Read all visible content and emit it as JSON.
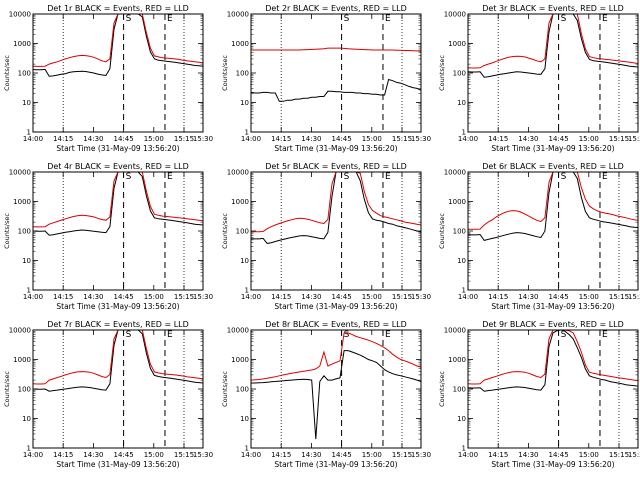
{
  "chart_data": [
    {
      "title": "Det 1r BLACK = Events, RED = LLD",
      "ylabel": "Counts/sec",
      "xlabel": "Start Time (31-May-09 13:56:20)",
      "series": [
        {
          "name": "BLACK = Events",
          "color": "#000000",
          "y": [
            130,
            128,
            128,
            132,
            78,
            80,
            85,
            90,
            95,
            105,
            110,
            112,
            115,
            112,
            106,
            100,
            92,
            86,
            82,
            140,
            3000,
            10000,
            10000,
            10000,
            10000,
            10000,
            10000,
            8000,
            1800,
            520,
            300,
            270,
            260,
            250,
            240,
            230,
            220,
            210,
            200,
            190,
            180,
            175,
            170
          ]
        },
        {
          "name": "RED = LLD",
          "color": "#e00000",
          "y": [
            170,
            168,
            168,
            170,
            200,
            220,
            240,
            270,
            300,
            330,
            360,
            380,
            395,
            390,
            370,
            340,
            300,
            260,
            240,
            300,
            5000,
            10000,
            10000,
            10000,
            10000,
            10000,
            10000,
            10000,
            2400,
            700,
            380,
            350,
            330,
            320,
            310,
            300,
            290,
            270,
            260,
            250,
            240,
            230,
            220
          ]
        }
      ]
    },
    {
      "title": "Det 2r BLACK = Events, RED = LLD",
      "ylabel": "Counts/sec",
      "xlabel": "Start Time (31-May-09 13:56:20)",
      "series": [
        {
          "name": "BLACK = Events",
          "color": "#000000",
          "y": [
            22,
            21,
            21,
            22,
            22,
            21,
            21,
            11,
            11,
            12,
            12,
            13,
            13,
            14,
            14,
            15,
            15,
            16,
            16,
            24,
            24,
            23,
            23,
            22,
            22,
            22,
            21,
            21,
            20,
            20,
            19,
            19,
            18,
            18,
            60,
            55,
            48,
            45,
            40,
            35,
            32,
            30,
            26
          ]
        },
        {
          "name": "RED = LLD",
          "color": "#e00000",
          "y": [
            600,
            600,
            600,
            600,
            600,
            600,
            600,
            600,
            600,
            600,
            600,
            600,
            600,
            610,
            620,
            630,
            640,
            650,
            660,
            700,
            700,
            700,
            700,
            680,
            660,
            650,
            640,
            630,
            620,
            610,
            600,
            600,
            600,
            600,
            600,
            600,
            590,
            590,
            580,
            580,
            570,
            560,
            550
          ]
        }
      ]
    },
    {
      "title": "Det 3r BLACK = Events, RED = LLD",
      "ylabel": "Counts/sec",
      "xlabel": "Start Time (31-May-09 13:56:20)",
      "series": [
        {
          "name": "BLACK = Events",
          "color": "#000000",
          "y": [
            110,
            108,
            108,
            110,
            72,
            75,
            80,
            85,
            90,
            95,
            100,
            105,
            110,
            108,
            104,
            100,
            96,
            92,
            90,
            140,
            2500,
            10000,
            10000,
            10000,
            10000,
            10000,
            10000,
            6000,
            1500,
            500,
            290,
            260,
            250,
            240,
            230,
            220,
            210,
            200,
            190,
            180,
            170,
            165,
            160
          ]
        },
        {
          "name": "RED = LLD",
          "color": "#e00000",
          "y": [
            150,
            148,
            148,
            150,
            180,
            200,
            220,
            250,
            280,
            310,
            340,
            360,
            370,
            365,
            350,
            320,
            290,
            260,
            240,
            300,
            5000,
            10000,
            10000,
            10000,
            10000,
            10000,
            10000,
            10000,
            2200,
            650,
            360,
            330,
            310,
            300,
            290,
            280,
            270,
            260,
            250,
            240,
            230,
            220,
            210
          ]
        }
      ]
    },
    {
      "title": "Det 4r BLACK = Events, RED = LLD",
      "ylabel": "Counts/sec",
      "xlabel": "Start Time (31-May-09 13:56:20)",
      "series": [
        {
          "name": "BLACK = Events",
          "color": "#000000",
          "y": [
            100,
            98,
            98,
            100,
            72,
            75,
            80,
            85,
            90,
            95,
            100,
            104,
            108,
            106,
            102,
            98,
            94,
            90,
            88,
            140,
            2800,
            10000,
            10000,
            10000,
            10000,
            10000,
            10000,
            7000,
            1600,
            480,
            280,
            260,
            250,
            240,
            230,
            220,
            210,
            200,
            190,
            180,
            170,
            165,
            160
          ]
        },
        {
          "name": "RED = LLD",
          "color": "#e00000",
          "y": [
            140,
            138,
            138,
            140,
            170,
            190,
            210,
            235,
            260,
            285,
            310,
            330,
            340,
            335,
            320,
            300,
            270,
            245,
            230,
            300,
            5000,
            10000,
            10000,
            10000,
            10000,
            10000,
            10000,
            10000,
            2300,
            680,
            370,
            340,
            320,
            310,
            300,
            290,
            280,
            270,
            260,
            250,
            240,
            230,
            220
          ]
        }
      ]
    },
    {
      "title": "Det 5r BLACK = Events, RED = LLD",
      "ylabel": "Counts/sec",
      "xlabel": "Start Time (31-May-09 13:56:20)",
      "series": [
        {
          "name": "BLACK = Events",
          "color": "#000000",
          "y": [
            55,
            54,
            54,
            56,
            38,
            40,
            44,
            48,
            52,
            56,
            60,
            64,
            68,
            70,
            68,
            64,
            60,
            56,
            54,
            90,
            1500,
            10000,
            10000,
            10000,
            10000,
            10000,
            10000,
            5000,
            1200,
            420,
            260,
            230,
            220,
            200,
            180,
            170,
            150,
            140,
            130,
            120,
            110,
            100,
            95
          ]
        },
        {
          "name": "RED = LLD",
          "color": "#e00000",
          "y": [
            95,
            94,
            94,
            96,
            120,
            140,
            160,
            180,
            200,
            220,
            240,
            260,
            270,
            265,
            250,
            230,
            210,
            190,
            180,
            250,
            4000,
            10000,
            10000,
            10000,
            10000,
            10000,
            10000,
            9000,
            2200,
            800,
            500,
            400,
            330,
            300,
            280,
            260,
            240,
            220,
            200,
            190,
            180,
            170,
            160
          ]
        }
      ]
    },
    {
      "title": "Det 6r BLACK = Events, RED = LLD",
      "ylabel": "Counts/sec",
      "xlabel": "Start Time (31-May-09 13:56:20)",
      "series": [
        {
          "name": "BLACK = Events",
          "color": "#000000",
          "y": [
            75,
            74,
            74,
            76,
            48,
            52,
            56,
            60,
            66,
            72,
            78,
            84,
            88,
            86,
            82,
            76,
            70,
            64,
            60,
            100,
            2000,
            10000,
            10000,
            10000,
            10000,
            10000,
            10000,
            6000,
            1400,
            460,
            280,
            250,
            230,
            210,
            200,
            190,
            180,
            170,
            160,
            150,
            140,
            135,
            130
          ]
        },
        {
          "name": "RED = LLD",
          "color": "#e00000",
          "y": [
            115,
            114,
            114,
            116,
            160,
            200,
            240,
            300,
            360,
            420,
            470,
            490,
            480,
            440,
            380,
            320,
            270,
            230,
            210,
            280,
            4500,
            10000,
            10000,
            10000,
            10000,
            10000,
            10000,
            10000,
            3000,
            1200,
            700,
            560,
            480,
            430,
            400,
            380,
            350,
            320,
            300,
            280,
            260,
            240,
            230
          ]
        }
      ]
    },
    {
      "title": "Det 7r BLACK = Events, RED = LLD",
      "ylabel": "Counts/sec",
      "xlabel": "Start Time (31-May-09 13:56:20)",
      "series": [
        {
          "name": "BLACK = Events",
          "color": "#000000",
          "y": [
            100,
            98,
            98,
            100,
            84,
            88,
            92,
            96,
            100,
            105,
            110,
            115,
            118,
            116,
            112,
            106,
            100,
            95,
            92,
            150,
            3000,
            10000,
            10000,
            10000,
            10000,
            10000,
            10000,
            7500,
            1700,
            500,
            290,
            265,
            250,
            240,
            230,
            220,
            210,
            200,
            190,
            180,
            170,
            165,
            160
          ]
        },
        {
          "name": "RED = LLD",
          "color": "#e00000",
          "y": [
            150,
            148,
            148,
            150,
            200,
            220,
            245,
            270,
            300,
            330,
            360,
            380,
            390,
            385,
            370,
            340,
            300,
            265,
            245,
            310,
            5000,
            10000,
            10000,
            10000,
            10000,
            10000,
            10000,
            10000,
            2400,
            700,
            380,
            350,
            330,
            320,
            310,
            300,
            290,
            275,
            260,
            250,
            240,
            230,
            220
          ]
        }
      ]
    },
    {
      "title": "Det 8r BLACK = Events, RED = LLD",
      "ylabel": "Counts/sec",
      "xlabel": "Start Time (31-May-09 13:56:20)",
      "series": [
        {
          "name": "BLACK = Events",
          "color": "#000000",
          "y": [
            160,
            160,
            162,
            165,
            170,
            175,
            180,
            185,
            190,
            195,
            200,
            205,
            210,
            215,
            210,
            200,
            2,
            180,
            280,
            200,
            200,
            220,
            240,
            2000,
            2000,
            1800,
            1600,
            1400,
            1200,
            1000,
            900,
            800,
            600,
            450,
            380,
            330,
            300,
            280,
            260,
            240,
            220,
            200,
            180
          ]
        },
        {
          "name": "RED = LLD",
          "color": "#e00000",
          "y": [
            200,
            205,
            210,
            220,
            230,
            245,
            260,
            280,
            300,
            320,
            340,
            360,
            380,
            400,
            420,
            440,
            480,
            600,
            1800,
            600,
            700,
            800,
            900,
            8000,
            8000,
            7000,
            6000,
            5500,
            5000,
            4500,
            4000,
            3500,
            3000,
            2500,
            2000,
            1500,
            1200,
            1000,
            900,
            800,
            700,
            600,
            550
          ]
        }
      ]
    },
    {
      "title": "Det 9r BLACK = Events, RED = LLD",
      "ylabel": "Counts/sec",
      "xlabel": "Start Time (31-May-09 13:56:20)",
      "series": [
        {
          "name": "BLACK = Events",
          "color": "#000000",
          "y": [
            110,
            108,
            108,
            110,
            84,
            88,
            92,
            96,
            100,
            105,
            110,
            115,
            118,
            116,
            112,
            106,
            100,
            95,
            92,
            140,
            2800,
            8000,
            9500,
            10000,
            9000,
            7000,
            5000,
            2500,
            1200,
            480,
            280,
            250,
            230,
            210,
            200,
            180,
            170,
            160,
            150,
            140,
            135,
            130,
            125
          ]
        },
        {
          "name": "RED = LLD",
          "color": "#e00000",
          "y": [
            150,
            148,
            148,
            150,
            200,
            220,
            245,
            270,
            300,
            330,
            360,
            380,
            390,
            385,
            370,
            340,
            300,
            265,
            245,
            320,
            5000,
            10000,
            10000,
            10000,
            10000,
            9500,
            8000,
            4000,
            1800,
            650,
            370,
            340,
            320,
            300,
            285,
            270,
            255,
            240,
            230,
            220,
            210,
            200,
            190
          ]
        }
      ]
    }
  ],
  "shared": {
    "type": "line",
    "yscale": "log",
    "ylim": [
      1,
      10000
    ],
    "ytick_labels": [
      "1",
      "10",
      "100",
      "1000",
      "10000"
    ],
    "xtick_labels": [
      "14:00",
      "14:15",
      "14:30",
      "14:45",
      "15:00",
      "15:15",
      "15:30"
    ],
    "xlim_minutes": [
      14.0,
      15.0
    ],
    "marker_S": "S",
    "marker_E": "E"
  }
}
